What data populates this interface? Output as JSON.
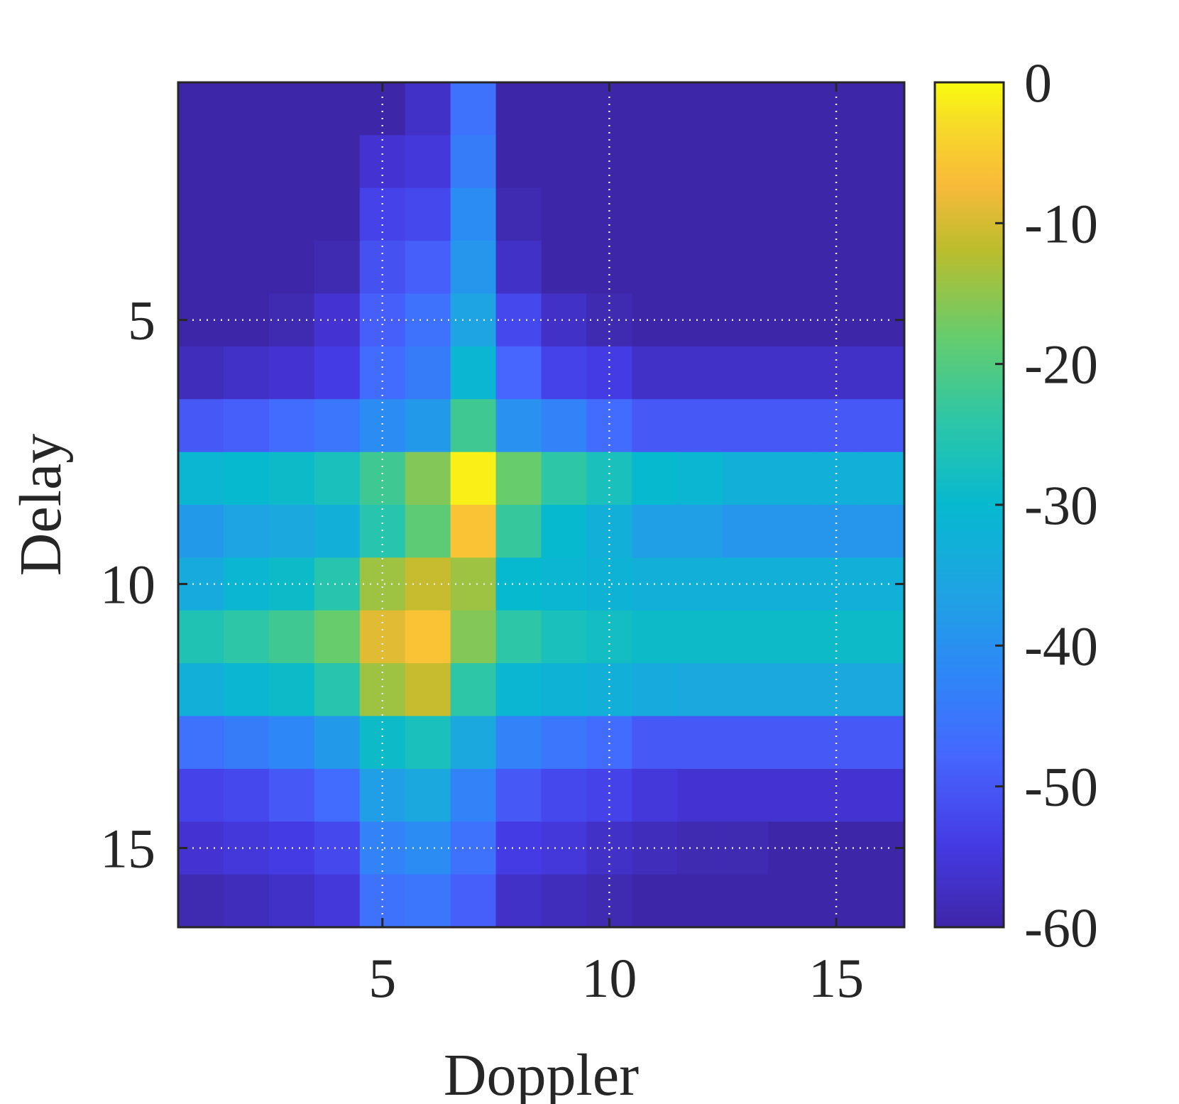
{
  "chart_data": {
    "type": "heatmap",
    "xlabel": "Doppler",
    "ylabel": "Delay",
    "x": [
      1,
      2,
      3,
      4,
      5,
      6,
      7,
      8,
      9,
      10,
      11,
      12,
      13,
      14,
      15,
      16
    ],
    "y": [
      1,
      2,
      3,
      4,
      5,
      6,
      7,
      8,
      9,
      10,
      11,
      12,
      13,
      14,
      15,
      16
    ],
    "xlim": [
      0.5,
      16.5
    ],
    "ylim": [
      0.5,
      16.5
    ],
    "y_reversed": true,
    "xticks": [
      5,
      10,
      15
    ],
    "yticks": [
      5,
      10,
      15
    ],
    "grid": true,
    "grid_style": "dotted",
    "colormap": "parula",
    "clim": [
      -60,
      0
    ],
    "colorbar": {
      "ticks": [
        0,
        -10,
        -20,
        -30,
        -40,
        -50,
        -60
      ],
      "tick_labels": [
        "0",
        "-10",
        "-20",
        "-30",
        "-40",
        "-50",
        "-60"
      ],
      "placement": "right"
    },
    "z_units": "dB",
    "z": [
      [
        -60,
        -60,
        -60,
        -60,
        -60,
        -57,
        -46,
        -60,
        -60,
        -60,
        -60,
        -60,
        -60,
        -60,
        -60,
        -60
      ],
      [
        -60,
        -60,
        -60,
        -60,
        -56,
        -55,
        -44,
        -60,
        -60,
        -60,
        -60,
        -60,
        -60,
        -60,
        -60,
        -60
      ],
      [
        -60,
        -60,
        -60,
        -60,
        -53,
        -52,
        -41,
        -59,
        -60,
        -60,
        -60,
        -60,
        -60,
        -60,
        -60,
        -60
      ],
      [
        -60,
        -60,
        -60,
        -59,
        -51,
        -49,
        -39,
        -57,
        -60,
        -60,
        -60,
        -60,
        -60,
        -60,
        -60,
        -60
      ],
      [
        -60,
        -60,
        -59,
        -56,
        -49,
        -46,
        -36,
        -52,
        -57,
        -59,
        -60,
        -60,
        -60,
        -60,
        -60,
        -60
      ],
      [
        -58,
        -57,
        -56,
        -54,
        -47,
        -44,
        -31,
        -48,
        -53,
        -54,
        -57,
        -57,
        -57,
        -57,
        -57,
        -57
      ],
      [
        -50,
        -49,
        -47,
        -45,
        -41,
        -38,
        -22,
        -40,
        -43,
        -47,
        -50,
        -50,
        -50,
        -50,
        -50,
        -50
      ],
      [
        -31,
        -30,
        -29,
        -27,
        -22,
        -16,
        -1,
        -18,
        -24,
        -27,
        -30,
        -31,
        -33,
        -33,
        -33,
        -33
      ],
      [
        -38,
        -36,
        -35,
        -33,
        -25,
        -19,
        -6,
        -23,
        -30,
        -33,
        -37,
        -37,
        -39,
        -39,
        -39,
        -39
      ],
      [
        -34,
        -31,
        -29,
        -25,
        -14,
        -11,
        -14,
        -30,
        -31,
        -32,
        -33,
        -33,
        -33,
        -33,
        -33,
        -33
      ],
      [
        -26,
        -24,
        -22,
        -18,
        -9,
        -6,
        -16,
        -24,
        -27,
        -28,
        -29,
        -29,
        -29,
        -29,
        -29,
        -29
      ],
      [
        -33,
        -31,
        -29,
        -25,
        -14,
        -11,
        -24,
        -31,
        -32,
        -33,
        -34,
        -35,
        -35,
        -35,
        -35,
        -35
      ],
      [
        -46,
        -44,
        -42,
        -38,
        -29,
        -27,
        -35,
        -43,
        -45,
        -47,
        -50,
        -50,
        -50,
        -50,
        -50,
        -50
      ],
      [
        -53,
        -52,
        -50,
        -47,
        -37,
        -35,
        -43,
        -50,
        -52,
        -53,
        -55,
        -56,
        -56,
        -56,
        -56,
        -56
      ],
      [
        -56,
        -55,
        -54,
        -52,
        -43,
        -41,
        -46,
        -54,
        -55,
        -57,
        -58,
        -59,
        -59,
        -60,
        -60,
        -60
      ],
      [
        -59,
        -58,
        -57,
        -55,
        -46,
        -45,
        -49,
        -57,
        -58,
        -59,
        -60,
        -60,
        -60,
        -60,
        -60,
        -60
      ]
    ]
  }
}
